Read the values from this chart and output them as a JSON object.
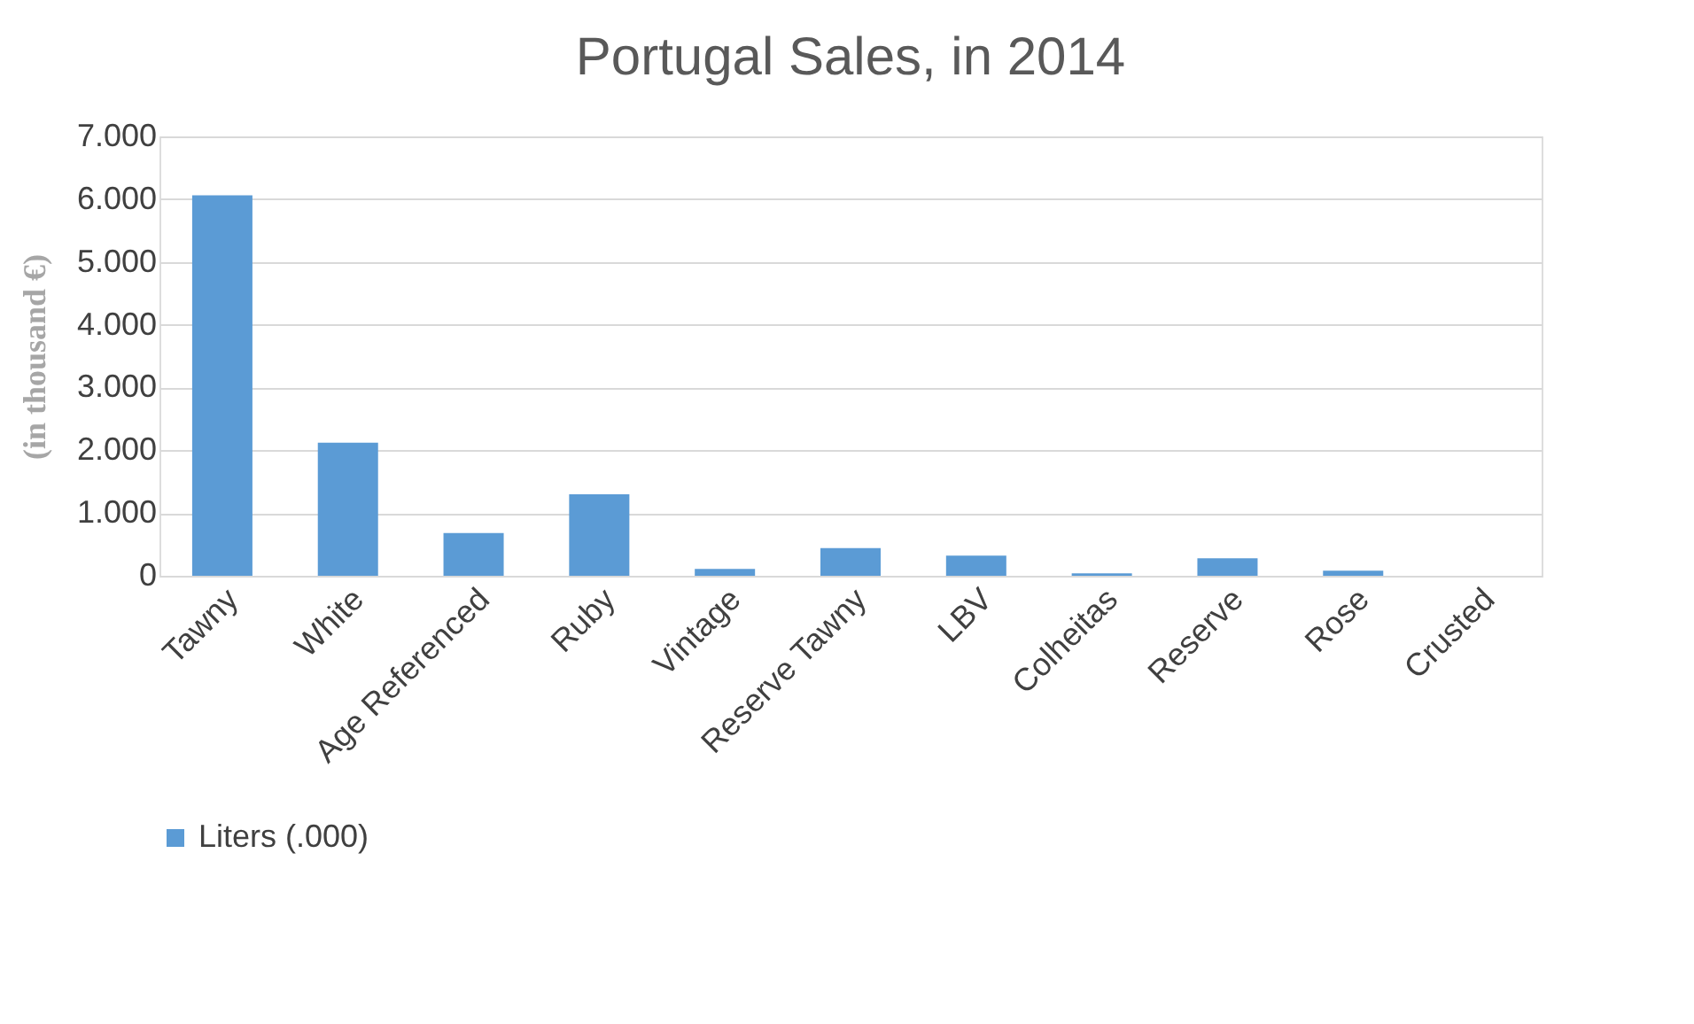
{
  "chart_data": {
    "type": "bar",
    "title": "Portugal  Sales, in 2014",
    "ylabel": "(in thousand €)",
    "categories": [
      "Tawny",
      "White",
      "Age Referenced",
      "Ruby",
      "Vintage",
      "Reserve Tawny",
      "LBV",
      "Colheitas",
      "Reserve",
      "Rose",
      "Crusted"
    ],
    "series": [
      {
        "name": "Liters (.000)",
        "color": "#5b9bd5",
        "values": [
          6060,
          2120,
          680,
          1300,
          110,
          440,
          320,
          40,
          280,
          80,
          0
        ]
      }
    ],
    "ylim": [
      0,
      7000
    ],
    "yticks": [
      0,
      {
        "value": 1000,
        "label": "1.000"
      },
      {
        "value": 2000,
        "label": "2.000"
      },
      {
        "value": 3000,
        "label": "3.000"
      },
      {
        "value": 4000,
        "label": "4.000"
      },
      {
        "value": 5000,
        "label": "5.000"
      },
      {
        "value": 6000,
        "label": "6.000"
      },
      {
        "value": 7000,
        "label": "7.000"
      }
    ],
    "grid": "y",
    "legend": "bottom"
  }
}
